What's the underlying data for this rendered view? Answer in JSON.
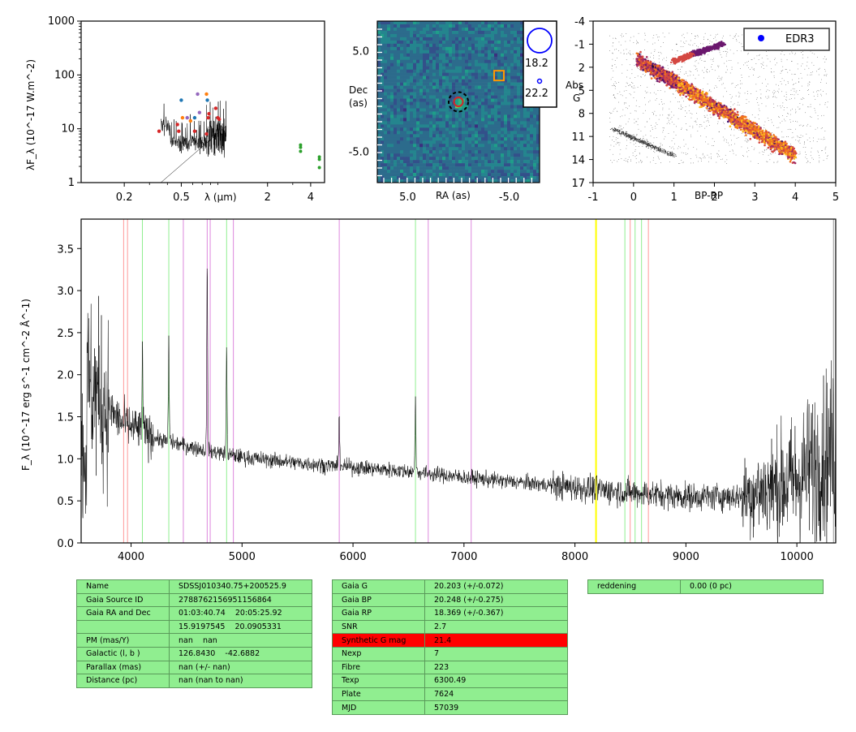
{
  "chart_data": [
    {
      "type": "scatter",
      "panel": "SED",
      "ylabel": "λF_λ (10^-17 W.m^-2)",
      "xlabel": "λ (μm)",
      "xscale": "log",
      "yscale": "log",
      "xlim": [
        0.1,
        5.0
      ],
      "ylim": [
        1,
        1000
      ],
      "xticks": [
        "0.2",
        "0.5",
        "2",
        "4"
      ],
      "yticks": [
        "1",
        "10",
        "100",
        "1000"
      ],
      "points": [
        {
          "x": 0.35,
          "y": 9.0,
          "color": "#d62728"
        },
        {
          "x": 0.48,
          "y": 9.0,
          "color": "#d62728"
        },
        {
          "x": 0.47,
          "y": 12.0,
          "color": "#d62728"
        },
        {
          "x": 0.5,
          "y": 34.0,
          "color": "#1f77b4"
        },
        {
          "x": 0.51,
          "y": 16.0,
          "color": "#ff7f0e"
        },
        {
          "x": 0.55,
          "y": 16.0,
          "color": "#9467bd"
        },
        {
          "x": 0.58,
          "y": 14.0,
          "color": "#ff7f0e"
        },
        {
          "x": 0.62,
          "y": 16.0,
          "color": "#1f77b4"
        },
        {
          "x": 0.65,
          "y": 44.0,
          "color": "#9467bd"
        },
        {
          "x": 0.67,
          "y": 20.0,
          "color": "#9467bd"
        },
        {
          "x": 0.75,
          "y": 44.0,
          "color": "#ff7f0e"
        },
        {
          "x": 0.76,
          "y": 34.0,
          "color": "#1f77b4"
        },
        {
          "x": 0.77,
          "y": 16.0,
          "color": "#d62728"
        },
        {
          "x": 0.78,
          "y": 19.0,
          "color": "#d62728"
        },
        {
          "x": 0.87,
          "y": 24.0,
          "color": "#d62728"
        },
        {
          "x": 0.9,
          "y": 16.0,
          "color": "#d62728"
        },
        {
          "x": 0.92,
          "y": 15.0,
          "color": "#d62728"
        },
        {
          "x": 0.62,
          "y": 9.0,
          "color": "#d62728"
        },
        {
          "x": 0.75,
          "y": 8.0,
          "color": "#d62728"
        },
        {
          "x": 3.4,
          "y": 5.0,
          "color": "#2ca02c"
        },
        {
          "x": 3.4,
          "y": 4.5,
          "color": "#2ca02c"
        },
        {
          "x": 3.4,
          "y": 3.8,
          "color": "#2ca02c"
        },
        {
          "x": 4.6,
          "y": 3.0,
          "color": "#2ca02c"
        },
        {
          "x": 4.6,
          "y": 2.7,
          "color": "#2ca02c"
        },
        {
          "x": 4.6,
          "y": 1.9,
          "color": "#2ca02c"
        }
      ],
      "spectrum": {
        "x_range": [
          0.36,
          1.03
        ],
        "level": 5.5,
        "color": "#000000"
      }
    },
    {
      "type": "heatmap",
      "panel": "image",
      "xlabel": "RA (as)",
      "ylabel": "Dec (as)",
      "xticks": [
        "5.0",
        "-5.0"
      ],
      "yticks": [
        "5.0",
        "-5.0"
      ],
      "xlim": [
        8.0,
        -8.0
      ],
      "ylim": [
        -8.0,
        8.0
      ],
      "colormap": "viridis",
      "markers": [
        {
          "shape": "dashed-circle",
          "x": 0.0,
          "y": 0.0,
          "color": "#000000"
        },
        {
          "shape": "circle",
          "x": 0.0,
          "y": 0.0,
          "color": "#d62728"
        },
        {
          "shape": "square",
          "x": -4.0,
          "y": 2.6,
          "color": "#ff9900"
        }
      ],
      "legend": {
        "placement": "right",
        "entries": [
          "18.2",
          "22.2"
        ],
        "color": "#0000ff"
      }
    },
    {
      "type": "scatter",
      "panel": "HR diagram",
      "xlabel": "BP-RP",
      "ylabel": "Abs G",
      "xlim": [
        -1,
        5
      ],
      "ylim": [
        17,
        -4
      ],
      "xticks": [
        "-1",
        "0",
        "1",
        "2",
        "3",
        "4",
        "5"
      ],
      "yticks": [
        "-4",
        "-1",
        "2",
        "5",
        "8",
        "11",
        "14",
        "17"
      ],
      "legend": {
        "placement": "top-right",
        "entries": [
          {
            "label": "EDR3",
            "color": "#0000ff"
          }
        ]
      },
      "colormap": "inferno"
    },
    {
      "type": "line",
      "panel": "spectrum",
      "ylabel": "F_λ (10^-17 erg s^-1 cm^-2 Å^-1)",
      "xlim": [
        3550,
        10350
      ],
      "ylim": [
        0.0,
        3.85
      ],
      "xticks": [
        "4000",
        "5000",
        "6000",
        "7000",
        "8000",
        "9000",
        "10000"
      ],
      "yticks": [
        "0.0",
        "0.5",
        "1.0",
        "1.5",
        "2.0",
        "2.5",
        "3.0",
        "3.5"
      ],
      "continuum": [
        [
          3600,
          1.9
        ],
        [
          3900,
          1.45
        ],
        [
          4200,
          1.25
        ],
        [
          4600,
          1.12
        ],
        [
          5000,
          1.02
        ],
        [
          5500,
          0.95
        ],
        [
          6000,
          0.9
        ],
        [
          6500,
          0.85
        ],
        [
          7000,
          0.78
        ],
        [
          7500,
          0.72
        ],
        [
          8000,
          0.66
        ],
        [
          8500,
          0.6
        ],
        [
          9000,
          0.55
        ],
        [
          9500,
          0.55
        ],
        [
          10000,
          0.75
        ],
        [
          10300,
          1.1
        ]
      ],
      "emission": [
        {
          "x": 4102,
          "h": 1.0
        },
        {
          "x": 4340,
          "h": 1.2
        },
        {
          "x": 4686,
          "h": 2.2
        },
        {
          "x": 4861,
          "h": 1.2
        },
        {
          "x": 5876,
          "h": 0.65
        },
        {
          "x": 6563,
          "h": 0.9
        }
      ],
      "lines": [
        {
          "x": 3933,
          "color": "#ff9999"
        },
        {
          "x": 3968,
          "color": "#ff9999"
        },
        {
          "x": 4102,
          "color": "#90ee90"
        },
        {
          "x": 4340,
          "color": "#90ee90"
        },
        {
          "x": 4471,
          "color": "#dd88dd"
        },
        {
          "x": 4686,
          "color": "#dd88dd"
        },
        {
          "x": 4713,
          "color": "#dd88dd"
        },
        {
          "x": 4861,
          "color": "#90ee90"
        },
        {
          "x": 4922,
          "color": "#dd88dd"
        },
        {
          "x": 5876,
          "color": "#dd88dd"
        },
        {
          "x": 6563,
          "color": "#90ee90"
        },
        {
          "x": 6678,
          "color": "#dd88dd"
        },
        {
          "x": 7065,
          "color": "#dd88dd"
        },
        {
          "x": 8190,
          "color": "#ffff00",
          "width": 2
        },
        {
          "x": 8450,
          "color": "#90ee90"
        },
        {
          "x": 8498,
          "color": "#ff9999"
        },
        {
          "x": 8542,
          "color": "#90ee90"
        },
        {
          "x": 8600,
          "color": "#90ee90"
        },
        {
          "x": 8662,
          "color": "#ff9999"
        },
        {
          "x": 10330,
          "color": "#999999"
        }
      ]
    }
  ],
  "tables": {
    "left": [
      [
        "Name",
        "SDSSJ010340.75+200525.9"
      ],
      [
        "Gaia Source ID",
        "2788762156951156864"
      ],
      [
        "Gaia RA and Dec",
        "01:03:40.74    20:05:25.92"
      ],
      [
        "",
        "15.9197545    20.0905331"
      ],
      [
        "PM (mas/Y)",
        "nan    nan"
      ],
      [
        "Galactic (l, b )",
        "126.8430    -42.6882"
      ],
      [
        "Parallax (mas)",
        "nan (+/- nan)"
      ],
      [
        "Distance (pc)",
        "nan (nan to nan)"
      ]
    ],
    "middle": [
      [
        "Gaia G",
        "20.203 (+/-0.072)"
      ],
      [
        "Gaia BP",
        "20.248 (+/-0.275)"
      ],
      [
        "Gaia RP",
        "18.369 (+/-0.367)"
      ],
      [
        "SNR",
        "2.7"
      ],
      [
        "Synthetic G mag",
        "21.4"
      ],
      [
        "Nexp",
        "7"
      ],
      [
        "Fibre",
        "223"
      ],
      [
        "Texp",
        "6300.49"
      ],
      [
        "Plate",
        "7624"
      ],
      [
        "MJD",
        "57039"
      ]
    ],
    "right": [
      [
        "reddening",
        "0.00 (0 pc)"
      ]
    ],
    "highlight_row": "Synthetic G mag",
    "colors": {
      "cell": "#90ee90",
      "alert": "#ff0000"
    }
  }
}
